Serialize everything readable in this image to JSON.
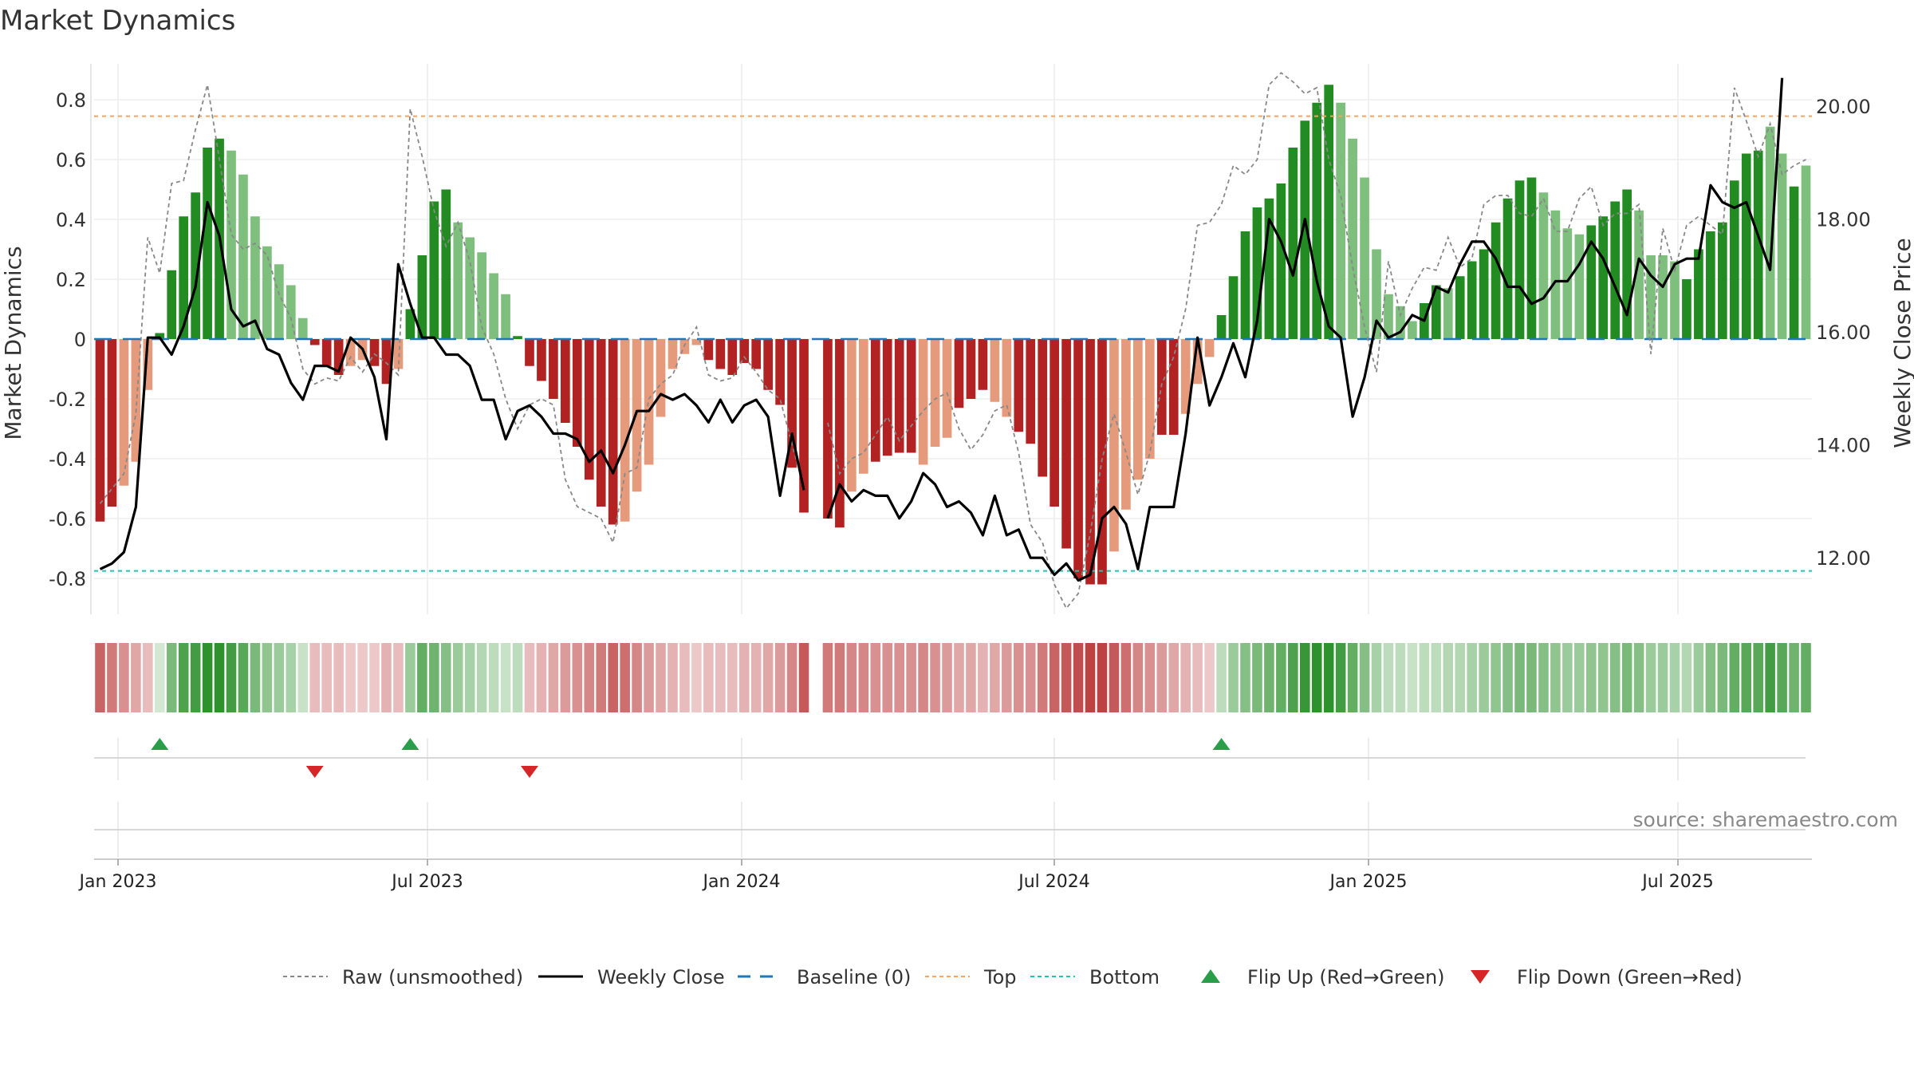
{
  "chart_data": {
    "type": "bar",
    "title": "Market Dynamics",
    "source": "source: sharemaestro.com",
    "y_left_label": "Market Dynamics",
    "y_right_label": "Weekly Close Price",
    "y_left_ticks": [
      "0.8",
      "0.6",
      "0.4",
      "0.2",
      "0",
      "-0.2",
      "-0.4",
      "-0.6",
      "-0.8"
    ],
    "y_right_ticks": [
      "20.00",
      "18.00",
      "16.00",
      "14.00",
      "12.00"
    ],
    "ylim_left": [
      -0.92,
      0.92
    ],
    "ylim_right": [
      11.0,
      20.75
    ],
    "x_ticks": [
      "Jan 2023",
      "Jul 2023",
      "Jan 2024",
      "Jul 2024",
      "Jan 2025",
      "Jul 2025"
    ],
    "reference_lines": {
      "baseline": 0,
      "top": 0.745,
      "bottom": -0.775
    },
    "colors": {
      "strong_green": "#228b22",
      "light_green": "#7ebf7e",
      "strong_red": "#b22222",
      "light_red": "#e59a7b",
      "close": "#000000",
      "raw": "#888888",
      "baseline": "#1f77b4",
      "top": "#f4a460",
      "bottom": "#20c4b0",
      "flip_up": "#2a9d4b",
      "flip_down": "#d62728"
    },
    "series": [
      {
        "name": "Market Dynamics",
        "values": [
          -0.61,
          -0.56,
          -0.49,
          -0.41,
          -0.17,
          0.02,
          0.23,
          0.41,
          0.49,
          0.64,
          0.67,
          0.63,
          0.55,
          0.41,
          0.31,
          0.25,
          0.18,
          0.07,
          -0.02,
          -0.09,
          -0.12,
          -0.09,
          -0.07,
          -0.09,
          -0.15,
          -0.1,
          0.1,
          0.28,
          0.46,
          0.5,
          0.39,
          0.34,
          0.29,
          0.22,
          0.15,
          0.01,
          -0.09,
          -0.14,
          -0.2,
          -0.28,
          -0.36,
          -0.47,
          -0.56,
          -0.62,
          -0.61,
          -0.51,
          -0.42,
          -0.26,
          -0.1,
          -0.05,
          -0.02,
          -0.07,
          -0.1,
          -0.12,
          -0.08,
          -0.1,
          -0.17,
          -0.22,
          -0.43,
          -0.58,
          null,
          -0.6,
          -0.63,
          -0.51,
          -0.45,
          -0.41,
          -0.39,
          -0.38,
          -0.38,
          -0.42,
          -0.36,
          -0.33,
          -0.23,
          -0.2,
          -0.17,
          -0.21,
          -0.26,
          -0.31,
          -0.35,
          -0.46,
          -0.56,
          -0.7,
          -0.8,
          -0.82,
          -0.82,
          -0.71,
          -0.57,
          -0.47,
          -0.4,
          -0.32,
          -0.32,
          -0.25,
          -0.15,
          -0.06,
          0.08,
          0.21,
          0.36,
          0.44,
          0.47,
          0.52,
          0.64,
          0.73,
          0.79,
          0.85,
          0.79,
          0.67,
          0.54,
          0.3,
          0.15,
          0.11,
          0.06,
          0.12,
          0.18,
          0.17,
          0.21,
          0.26,
          0.3,
          0.39,
          0.47,
          0.53,
          0.54,
          0.49,
          0.43,
          0.37,
          0.35,
          0.38,
          0.41,
          0.46,
          0.5,
          0.43,
          0.28,
          0.28,
          0.26,
          0.2,
          0.3,
          0.36,
          0.39,
          0.53,
          0.62,
          0.63,
          0.71,
          0.62,
          0.51,
          0.58
        ]
      },
      {
        "name": "Raw (unsmoothed)",
        "values": [
          -0.55,
          -0.5,
          -0.45,
          -0.25,
          0.34,
          0.22,
          0.52,
          0.53,
          0.7,
          0.85,
          0.6,
          0.35,
          0.3,
          0.32,
          0.28,
          0.15,
          0.07,
          -0.1,
          -0.15,
          -0.13,
          -0.14,
          -0.06,
          -0.11,
          -0.05,
          -0.08,
          -0.12,
          0.77,
          0.61,
          0.43,
          0.31,
          0.39,
          0.26,
          0.04,
          -0.05,
          -0.2,
          -0.3,
          -0.22,
          -0.2,
          -0.22,
          -0.47,
          -0.56,
          -0.58,
          -0.6,
          -0.68,
          -0.45,
          -0.43,
          -0.2,
          -0.15,
          -0.12,
          -0.02,
          0.04,
          -0.12,
          -0.14,
          -0.13,
          -0.06,
          -0.11,
          -0.17,
          -0.2,
          -0.35,
          -0.5,
          null,
          -0.28,
          -0.45,
          -0.4,
          -0.38,
          -0.32,
          -0.26,
          -0.34,
          -0.29,
          -0.24,
          -0.2,
          -0.18,
          -0.3,
          -0.37,
          -0.32,
          -0.24,
          -0.22,
          -0.38,
          -0.62,
          -0.68,
          -0.82,
          -0.9,
          -0.85,
          -0.65,
          -0.4,
          -0.25,
          -0.38,
          -0.52,
          -0.38,
          -0.15,
          -0.06,
          0.1,
          0.38,
          0.39,
          0.45,
          0.58,
          0.55,
          0.6,
          0.85,
          0.89,
          0.86,
          0.82,
          0.84,
          0.6,
          0.48,
          0.24,
          0.04,
          -0.11,
          0.26,
          0.08,
          0.17,
          0.24,
          0.23,
          0.34,
          0.24,
          0.27,
          0.45,
          0.48,
          0.48,
          0.42,
          0.41,
          0.47,
          0.36,
          0.36,
          0.47,
          0.51,
          0.38,
          0.42,
          0.42,
          0.45,
          -0.05,
          0.37,
          0.23,
          0.38,
          0.41,
          0.38,
          0.35,
          0.84,
          0.73,
          0.61,
          0.72,
          0.55,
          0.58,
          0.6
        ]
      },
      {
        "name": "Weekly Close",
        "values": [
          11.8,
          11.9,
          12.1,
          12.9,
          15.9,
          15.9,
          15.6,
          16.1,
          16.8,
          18.3,
          17.7,
          16.4,
          16.1,
          16.2,
          15.7,
          15.6,
          15.1,
          14.8,
          15.4,
          15.4,
          15.3,
          15.9,
          15.7,
          15.2,
          14.1,
          17.2,
          16.5,
          15.9,
          15.9,
          15.6,
          15.6,
          15.4,
          14.8,
          14.8,
          14.1,
          14.6,
          14.7,
          14.5,
          14.2,
          14.2,
          14.1,
          13.7,
          13.9,
          13.5,
          14.0,
          14.6,
          14.6,
          14.9,
          14.8,
          14.9,
          14.7,
          14.4,
          14.8,
          14.4,
          14.7,
          14.8,
          14.5,
          13.1,
          14.2,
          13.2,
          null,
          12.7,
          13.3,
          13.0,
          13.2,
          13.1,
          13.1,
          12.7,
          13.0,
          13.5,
          13.3,
          12.9,
          13.0,
          12.8,
          12.4,
          13.1,
          12.4,
          12.5,
          12.0,
          12.0,
          11.7,
          11.9,
          11.6,
          11.7,
          12.7,
          12.9,
          12.6,
          11.8,
          12.9,
          12.9,
          12.9,
          14.2,
          15.9,
          14.7,
          15.2,
          15.8,
          15.2,
          16.2,
          18.0,
          17.6,
          17.0,
          18.0,
          16.9,
          16.1,
          15.9,
          14.5,
          15.2,
          16.2,
          15.9,
          16.0,
          16.3,
          16.2,
          16.8,
          16.7,
          17.2,
          17.6,
          17.6,
          17.3,
          16.8,
          16.8,
          16.5,
          16.6,
          16.9,
          16.9,
          17.2,
          17.6,
          17.3,
          16.8,
          16.3,
          17.3,
          17.0,
          16.8,
          17.2,
          17.3,
          17.3,
          18.6,
          18.3,
          18.2,
          18.3,
          17.7,
          17.1,
          20.5
        ]
      }
    ],
    "bar_strength": [
      1,
      1,
      0,
      0,
      0,
      1,
      1,
      1,
      1,
      1,
      1,
      0,
      0,
      0,
      0,
      0,
      0,
      0,
      1,
      1,
      1,
      0,
      0,
      1,
      1,
      0,
      1,
      1,
      1,
      1,
      0,
      0,
      0,
      0,
      0,
      1,
      1,
      1,
      1,
      1,
      1,
      1,
      1,
      1,
      0,
      0,
      0,
      0,
      0,
      0,
      0,
      1,
      1,
      1,
      1,
      1,
      1,
      1,
      1,
      1,
      0,
      1,
      1,
      0,
      0,
      1,
      1,
      1,
      1,
      0,
      0,
      0,
      1,
      1,
      1,
      0,
      0,
      1,
      1,
      1,
      1,
      1,
      1,
      1,
      1,
      0,
      0,
      0,
      0,
      1,
      1,
      0,
      0,
      0,
      1,
      1,
      1,
      1,
      1,
      1,
      1,
      1,
      1,
      1,
      0,
      0,
      0,
      0,
      0,
      0,
      0,
      1,
      1,
      0,
      1,
      1,
      1,
      1,
      1,
      1,
      1,
      0,
      0,
      0,
      0,
      1,
      1,
      1,
      1,
      0,
      0,
      0,
      0,
      1,
      1,
      1,
      1,
      1,
      1,
      1,
      0,
      0,
      1
    ],
    "strip_intensity": [
      0.7,
      0.6,
      0.5,
      0.4,
      0.3,
      0.2,
      0.6,
      0.8,
      0.85,
      0.95,
      0.95,
      0.85,
      0.75,
      0.6,
      0.5,
      0.45,
      0.4,
      0.25,
      0.3,
      0.3,
      0.3,
      0.25,
      0.25,
      0.25,
      0.35,
      0.3,
      0.45,
      0.7,
      0.65,
      0.55,
      0.45,
      0.4,
      0.35,
      0.3,
      0.25,
      0.3,
      0.3,
      0.35,
      0.4,
      0.45,
      0.5,
      0.55,
      0.6,
      0.7,
      0.65,
      0.55,
      0.45,
      0.4,
      0.35,
      0.3,
      0.25,
      0.3,
      0.3,
      0.3,
      0.35,
      0.35,
      0.4,
      0.45,
      0.55,
      0.75,
      null,
      0.6,
      0.6,
      0.55,
      0.55,
      0.5,
      0.5,
      0.5,
      0.5,
      0.55,
      0.5,
      0.45,
      0.4,
      0.4,
      0.35,
      0.4,
      0.45,
      0.5,
      0.5,
      0.6,
      0.7,
      0.75,
      0.8,
      0.85,
      0.85,
      0.75,
      0.65,
      0.55,
      0.5,
      0.45,
      0.4,
      0.35,
      0.3,
      0.25,
      0.3,
      0.45,
      0.55,
      0.6,
      0.65,
      0.7,
      0.8,
      0.9,
      0.95,
      0.95,
      0.85,
      0.7,
      0.55,
      0.4,
      0.3,
      0.3,
      0.25,
      0.3,
      0.3,
      0.35,
      0.35,
      0.4,
      0.45,
      0.5,
      0.55,
      0.6,
      0.6,
      0.55,
      0.5,
      0.45,
      0.45,
      0.5,
      0.5,
      0.55,
      0.6,
      0.55,
      0.45,
      0.45,
      0.4,
      0.35,
      0.45,
      0.55,
      0.6,
      0.7,
      0.75,
      0.75,
      0.85,
      0.75,
      0.65,
      0.7
    ],
    "flips": [
      {
        "type": "up",
        "index": 5
      },
      {
        "type": "down",
        "index": 18
      },
      {
        "type": "up",
        "index": 26
      },
      {
        "type": "down",
        "index": 36
      },
      {
        "type": "up",
        "index": 94
      }
    ],
    "legend": [
      {
        "label": "Raw (unsmoothed)",
        "style": "dashed-gray"
      },
      {
        "label": "Weekly Close",
        "style": "solid-black"
      },
      {
        "label": "Baseline (0)",
        "style": "dashed-blue"
      },
      {
        "label": "Top",
        "style": "dotted-orange"
      },
      {
        "label": "Bottom",
        "style": "dotted-teal"
      },
      {
        "label": "Flip Up (Red→Green)",
        "style": "triangle-up-green"
      },
      {
        "label": "Flip Down (Green→Red)",
        "style": "triangle-down-red"
      }
    ]
  }
}
